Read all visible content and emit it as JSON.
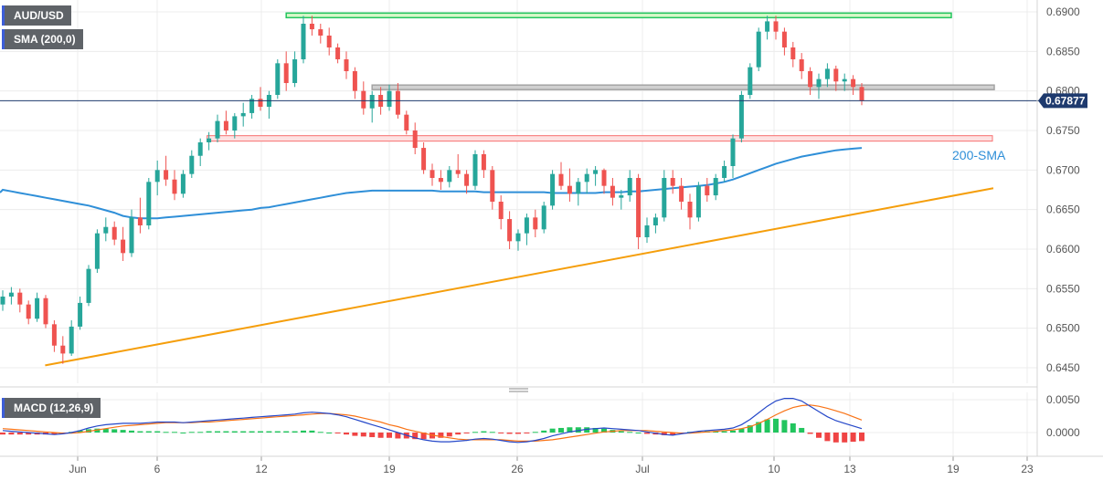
{
  "symbol": "AUD/USD",
  "indicator_label": "SMA (200,0)",
  "macd_label": "MACD (12,26,9)",
  "current_price_label": "0.67877",
  "sma_annotation": "200-SMA",
  "colors": {
    "bull": "#26a69a",
    "bear": "#ef5350",
    "sma": "#2f8fd8",
    "support": "#f59e0b",
    "resistance": "#22c55e",
    "grey_level": "#a3a3a3",
    "red_zone": "#f87171",
    "macd": "#2447c9",
    "signal": "#f97316",
    "hist_pos": "#22c55e",
    "hist_neg": "#ef4444"
  },
  "chart_data": [
    {
      "type": "candlestick",
      "title": "AUD/USD",
      "yaxis_ticks": [
        "0.6900",
        "0.6850",
        "0.6800",
        "0.6750",
        "0.6700",
        "0.6650",
        "0.6600",
        "0.6550",
        "0.6500",
        "0.6450"
      ],
      "ylim": [
        0.6438,
        0.691
      ],
      "xaxis_ticks": [
        "Jun",
        "6",
        "12",
        "19",
        "26",
        "Jul",
        "10",
        "13",
        "19",
        "23"
      ],
      "grid": true,
      "current_price": 0.67877,
      "ohlc": [
        [
          0.653,
          0.6548,
          0.6522,
          0.654
        ],
        [
          0.654,
          0.6552,
          0.653,
          0.6545
        ],
        [
          0.6545,
          0.655,
          0.652,
          0.653
        ],
        [
          0.653,
          0.6535,
          0.6505,
          0.6512
        ],
        [
          0.6512,
          0.6545,
          0.6508,
          0.6538
        ],
        [
          0.6538,
          0.6542,
          0.65,
          0.6505
        ],
        [
          0.6505,
          0.651,
          0.647,
          0.6478
        ],
        [
          0.6478,
          0.649,
          0.6455,
          0.6468
        ],
        [
          0.6468,
          0.651,
          0.6465,
          0.6502
        ],
        [
          0.6502,
          0.654,
          0.6498,
          0.6532
        ],
        [
          0.6532,
          0.658,
          0.6528,
          0.6575
        ],
        [
          0.6575,
          0.6625,
          0.657,
          0.662
        ],
        [
          0.662,
          0.664,
          0.661,
          0.6628
        ],
        [
          0.6628,
          0.6635,
          0.6605,
          0.6612
        ],
        [
          0.6612,
          0.6628,
          0.6585,
          0.6595
        ],
        [
          0.6595,
          0.665,
          0.659,
          0.664
        ],
        [
          0.664,
          0.6665,
          0.662,
          0.663
        ],
        [
          0.663,
          0.669,
          0.6625,
          0.6685
        ],
        [
          0.6685,
          0.6712,
          0.6668,
          0.67
        ],
        [
          0.67,
          0.6718,
          0.668,
          0.6688
        ],
        [
          0.6688,
          0.67,
          0.6662,
          0.667
        ],
        [
          0.667,
          0.67,
          0.6665,
          0.6695
        ],
        [
          0.6695,
          0.6725,
          0.669,
          0.6718
        ],
        [
          0.6718,
          0.674,
          0.6705,
          0.6735
        ],
        [
          0.6735,
          0.6748,
          0.6725,
          0.674
        ],
        [
          0.674,
          0.677,
          0.6735,
          0.6762
        ],
        [
          0.6762,
          0.6775,
          0.6745,
          0.675
        ],
        [
          0.675,
          0.6772,
          0.674,
          0.6768
        ],
        [
          0.6768,
          0.6785,
          0.6755,
          0.6772
        ],
        [
          0.6772,
          0.6795,
          0.6765,
          0.679
        ],
        [
          0.679,
          0.6805,
          0.6775,
          0.678
        ],
        [
          0.678,
          0.68,
          0.6765,
          0.6795
        ],
        [
          0.6795,
          0.684,
          0.679,
          0.6835
        ],
        [
          0.6835,
          0.685,
          0.68,
          0.681
        ],
        [
          0.681,
          0.685,
          0.6805,
          0.684
        ],
        [
          0.684,
          0.6895,
          0.6835,
          0.6885
        ],
        [
          0.6885,
          0.6895,
          0.687,
          0.6878
        ],
        [
          0.6878,
          0.6885,
          0.686,
          0.687
        ],
        [
          0.687,
          0.688,
          0.6845,
          0.6855
        ],
        [
          0.6855,
          0.686,
          0.6835,
          0.684
        ],
        [
          0.684,
          0.685,
          0.6815,
          0.6825
        ],
        [
          0.6825,
          0.683,
          0.679,
          0.68
        ],
        [
          0.68,
          0.6812,
          0.677,
          0.6778
        ],
        [
          0.6778,
          0.68,
          0.676,
          0.6795
        ],
        [
          0.6795,
          0.6805,
          0.677,
          0.678
        ],
        [
          0.678,
          0.6808,
          0.6775,
          0.68
        ],
        [
          0.68,
          0.681,
          0.6765,
          0.677
        ],
        [
          0.677,
          0.6775,
          0.6745,
          0.675
        ],
        [
          0.675,
          0.676,
          0.672,
          0.6728
        ],
        [
          0.6728,
          0.6735,
          0.6695,
          0.67
        ],
        [
          0.67,
          0.6708,
          0.668,
          0.669
        ],
        [
          0.669,
          0.67,
          0.6675,
          0.6685
        ],
        [
          0.6685,
          0.6705,
          0.6678,
          0.67
        ],
        [
          0.67,
          0.672,
          0.669,
          0.6695
        ],
        [
          0.6695,
          0.67,
          0.667,
          0.668
        ],
        [
          0.668,
          0.6725,
          0.6675,
          0.672
        ],
        [
          0.672,
          0.6725,
          0.669,
          0.67
        ],
        [
          0.67,
          0.6705,
          0.665,
          0.666
        ],
        [
          0.666,
          0.6668,
          0.6625,
          0.6638
        ],
        [
          0.6638,
          0.6648,
          0.66,
          0.661
        ],
        [
          0.661,
          0.6625,
          0.6598,
          0.662
        ],
        [
          0.662,
          0.6645,
          0.6605,
          0.664
        ],
        [
          0.664,
          0.665,
          0.6615,
          0.6625
        ],
        [
          0.6625,
          0.666,
          0.662,
          0.6655
        ],
        [
          0.6655,
          0.67,
          0.665,
          0.6695
        ],
        [
          0.6695,
          0.671,
          0.6675,
          0.668
        ],
        [
          0.668,
          0.6702,
          0.666,
          0.667
        ],
        [
          0.667,
          0.669,
          0.6655,
          0.6685
        ],
        [
          0.6685,
          0.6702,
          0.667,
          0.6695
        ],
        [
          0.6695,
          0.6705,
          0.668,
          0.67
        ],
        [
          0.67,
          0.6702,
          0.667,
          0.668
        ],
        [
          0.668,
          0.669,
          0.6655,
          0.6665
        ],
        [
          0.6665,
          0.6675,
          0.665,
          0.6668
        ],
        [
          0.6668,
          0.67,
          0.666,
          0.669
        ],
        [
          0.669,
          0.6695,
          0.66,
          0.6615
        ],
        [
          0.6615,
          0.664,
          0.6608,
          0.663
        ],
        [
          0.663,
          0.6645,
          0.662,
          0.664
        ],
        [
          0.664,
          0.67,
          0.6635,
          0.669
        ],
        [
          0.669,
          0.67,
          0.667,
          0.668
        ],
        [
          0.668,
          0.669,
          0.665,
          0.666
        ],
        [
          0.666,
          0.667,
          0.6625,
          0.664
        ],
        [
          0.664,
          0.6685,
          0.6635,
          0.668
        ],
        [
          0.668,
          0.669,
          0.666,
          0.6668
        ],
        [
          0.6668,
          0.6695,
          0.6662,
          0.669
        ],
        [
          0.669,
          0.6712,
          0.6685,
          0.6705
        ],
        [
          0.6705,
          0.6745,
          0.669,
          0.674
        ],
        [
          0.674,
          0.68,
          0.6735,
          0.6795
        ],
        [
          0.6795,
          0.6835,
          0.679,
          0.683
        ],
        [
          0.683,
          0.688,
          0.6825,
          0.6875
        ],
        [
          0.6875,
          0.6895,
          0.6865,
          0.6888
        ],
        [
          0.6888,
          0.6895,
          0.6865,
          0.6875
        ],
        [
          0.6875,
          0.688,
          0.6845,
          0.6855
        ],
        [
          0.6855,
          0.6862,
          0.683,
          0.684
        ],
        [
          0.684,
          0.6848,
          0.6815,
          0.6825
        ],
        [
          0.6825,
          0.683,
          0.6795,
          0.6805
        ],
        [
          0.6805,
          0.6822,
          0.679,
          0.6815
        ],
        [
          0.6815,
          0.6835,
          0.6805,
          0.6828
        ],
        [
          0.6828,
          0.6832,
          0.68,
          0.6812
        ],
        [
          0.6812,
          0.6822,
          0.68,
          0.6815
        ],
        [
          0.6815,
          0.682,
          0.6795,
          0.6805
        ],
        [
          0.6805,
          0.681,
          0.6782,
          0.6788
        ]
      ],
      "sma_200": [
        0.6675,
        0.6673,
        0.6671,
        0.6669,
        0.6667,
        0.6665,
        0.6663,
        0.6661,
        0.6659,
        0.6657,
        0.6655,
        0.6652,
        0.6649,
        0.6646,
        0.6642,
        0.664,
        0.6639,
        0.6639,
        0.6639,
        0.664,
        0.6641,
        0.6642,
        0.6643,
        0.6644,
        0.6645,
        0.6646,
        0.6647,
        0.6648,
        0.6649,
        0.665,
        0.6652,
        0.6653,
        0.6655,
        0.6657,
        0.6659,
        0.6661,
        0.6663,
        0.6665,
        0.6667,
        0.6669,
        0.6671,
        0.6672,
        0.6673,
        0.6674,
        0.6674,
        0.6674,
        0.6674,
        0.6674,
        0.6674,
        0.6674,
        0.6674,
        0.6673,
        0.6673,
        0.6673,
        0.6673,
        0.6673,
        0.6672,
        0.6672,
        0.6672,
        0.6672,
        0.6672,
        0.6672,
        0.6672,
        0.6672,
        0.6671,
        0.6671,
        0.6671,
        0.6671,
        0.6671,
        0.6671,
        0.6672,
        0.6672,
        0.6672,
        0.6673,
        0.6673,
        0.6674,
        0.6675,
        0.6676,
        0.6677,
        0.6678,
        0.6679,
        0.668,
        0.6681,
        0.6683,
        0.6685,
        0.6688,
        0.6692,
        0.6696,
        0.67,
        0.6704,
        0.6708,
        0.6711,
        0.6714,
        0.6717,
        0.6719,
        0.6721,
        0.6723,
        0.6725,
        0.6726,
        0.6727,
        0.6728
      ],
      "horizontal_levels": [
        {
          "name": "top-resistance",
          "value": 0.6895,
          "from": 33,
          "to": 110,
          "color": "#22c55e"
        },
        {
          "name": "mid-level",
          "value": 0.6804,
          "from": 43,
          "to": 115,
          "color": "#a3a3a3"
        },
        {
          "name": "support-zone",
          "value": 0.674,
          "from": 24,
          "to": 115,
          "color": "#f87171"
        }
      ],
      "trendline": {
        "from_bar": 6,
        "from_value": 0.6453,
        "to_bar": 115,
        "to_value": 0.6677
      }
    },
    {
      "type": "macd",
      "title": "MACD (12,26,9)",
      "yaxis_ticks": [
        "0.0050",
        "0.0000"
      ],
      "ylim": [
        -0.0028,
        0.006
      ],
      "macd": [
        0.0003,
        0.0002,
        0.0001,
        0.0,
        -0.0001,
        -0.0002,
        -0.0003,
        -0.0002,
        0.0,
        0.0003,
        0.0007,
        0.001,
        0.0012,
        0.0013,
        0.0014,
        0.0014,
        0.0014,
        0.0015,
        0.0016,
        0.0016,
        0.0016,
        0.0015,
        0.0016,
        0.0017,
        0.0018,
        0.0019,
        0.002,
        0.0021,
        0.0022,
        0.0023,
        0.0024,
        0.0025,
        0.0026,
        0.0027,
        0.0028,
        0.003,
        0.0031,
        0.003,
        0.0029,
        0.0027,
        0.0024,
        0.002,
        0.0016,
        0.0012,
        0.0008,
        0.0004,
        0.0,
        -0.0004,
        -0.0008,
        -0.0011,
        -0.0013,
        -0.0014,
        -0.0014,
        -0.0013,
        -0.0012,
        -0.001,
        -0.0009,
        -0.001,
        -0.0012,
        -0.0014,
        -0.0015,
        -0.0014,
        -0.0012,
        -0.0009,
        -0.0005,
        -0.0002,
        0.0001,
        0.0003,
        0.0005,
        0.0006,
        0.0007,
        0.0006,
        0.0005,
        0.0004,
        0.0003,
        0.0001,
        -0.0001,
        -0.0003,
        -0.0004,
        -0.0002,
        0.0,
        0.0002,
        0.0003,
        0.0004,
        0.0005,
        0.0007,
        0.0012,
        0.002,
        0.003,
        0.004,
        0.0048,
        0.0052,
        0.0052,
        0.0048,
        0.004,
        0.0032,
        0.0024,
        0.0018,
        0.0014,
        0.001,
        0.0006
      ],
      "signal": [
        0.0006,
        0.0005,
        0.0004,
        0.0003,
        0.0002,
        0.0001,
        0.0,
        -0.0001,
        -0.0001,
        0.0,
        0.0002,
        0.0004,
        0.0006,
        0.0008,
        0.001,
        0.0011,
        0.0012,
        0.0013,
        0.0014,
        0.0015,
        0.0015,
        0.0015,
        0.0015,
        0.0016,
        0.0016,
        0.0017,
        0.0018,
        0.0019,
        0.002,
        0.0021,
        0.0022,
        0.0023,
        0.0024,
        0.0025,
        0.0026,
        0.0027,
        0.0028,
        0.0029,
        0.0029,
        0.0028,
        0.0027,
        0.0025,
        0.0022,
        0.0019,
        0.0016,
        0.0012,
        0.0009,
        0.0005,
        0.0002,
        -0.0001,
        -0.0004,
        -0.0006,
        -0.0008,
        -0.001,
        -0.0011,
        -0.0011,
        -0.0011,
        -0.0011,
        -0.0011,
        -0.0012,
        -0.0013,
        -0.0013,
        -0.0013,
        -0.0012,
        -0.0011,
        -0.0009,
        -0.0007,
        -0.0005,
        -0.0003,
        -0.0001,
        0.0001,
        0.0002,
        0.0003,
        0.0003,
        0.0003,
        0.0003,
        0.0002,
        0.0001,
        0.0,
        -0.0001,
        -0.0001,
        0.0,
        0.0001,
        0.0002,
        0.0003,
        0.0004,
        0.0006,
        0.0009,
        0.0014,
        0.002,
        0.0027,
        0.0033,
        0.0038,
        0.0041,
        0.0042,
        0.004,
        0.0037,
        0.0033,
        0.0029,
        0.0024,
        0.0019
      ]
    }
  ]
}
